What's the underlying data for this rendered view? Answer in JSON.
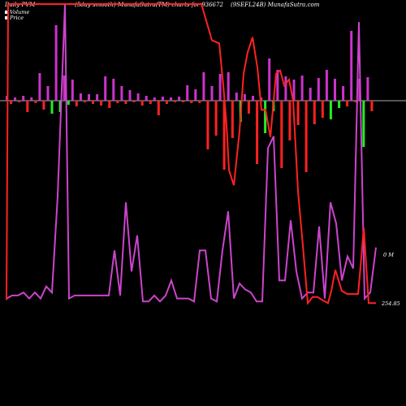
{
  "header": {
    "left": "Daily PVM",
    "center": "(5day smooth) MunafaSutra(TM) charts for 936672",
    "right": "(9SEFL24B) MunafaSutra.com"
  },
  "legend": [
    {
      "label": "Volume",
      "color": "#ffffff"
    },
    {
      "label": "Price",
      "color": "#ffffff"
    }
  ],
  "labels": {
    "volume_right": "0 M",
    "price_last": "254.85"
  },
  "colors": {
    "background": "#000000",
    "volume_line": "#cc44cc",
    "price_line": "#ff2222",
    "bar_up": "#cc33cc",
    "bar_down": "#ff2222",
    "bar_green": "#22ee22",
    "baseline": "#aaaaaa"
  },
  "chart_data": {
    "type": "bar",
    "description_series": [
      "PVM bars",
      "Volume line",
      "Price line"
    ],
    "baseline": 0,
    "pvm_bars": [
      {
        "v": 6,
        "c": "up"
      },
      {
        "v": -4,
        "c": "down"
      },
      {
        "v": 4,
        "c": "up"
      },
      {
        "v": -2,
        "c": "down"
      },
      {
        "v": 6,
        "c": "up"
      },
      {
        "v": -14,
        "c": "down"
      },
      {
        "v": 4,
        "c": "up"
      },
      {
        "v": -3,
        "c": "down"
      },
      {
        "v": 34,
        "c": "up"
      },
      {
        "v": -11,
        "c": "down"
      },
      {
        "v": 18,
        "c": "up"
      },
      {
        "v": -16,
        "c": "green"
      },
      {
        "v": 93,
        "c": "up"
      },
      {
        "v": -14,
        "c": "green"
      },
      {
        "v": 31,
        "c": "up"
      },
      {
        "v": -5,
        "c": "green"
      },
      {
        "v": 26,
        "c": "up"
      },
      {
        "v": -7,
        "c": "down"
      },
      {
        "v": 9,
        "c": "up"
      },
      {
        "v": -2,
        "c": "down"
      },
      {
        "v": 8,
        "c": "up"
      },
      {
        "v": -4,
        "c": "down"
      },
      {
        "v": 8,
        "c": "up"
      },
      {
        "v": -6,
        "c": "down"
      },
      {
        "v": 30,
        "c": "up"
      },
      {
        "v": -9,
        "c": "down"
      },
      {
        "v": 27,
        "c": "up"
      },
      {
        "v": -3,
        "c": "down"
      },
      {
        "v": 18,
        "c": "up"
      },
      {
        "v": -4,
        "c": "down"
      },
      {
        "v": 13,
        "c": "up"
      },
      {
        "v": -2,
        "c": "down"
      },
      {
        "v": 9,
        "c": "up"
      },
      {
        "v": -6,
        "c": "down"
      },
      {
        "v": 6,
        "c": "up"
      },
      {
        "v": -4,
        "c": "down"
      },
      {
        "v": 4,
        "c": "up"
      },
      {
        "v": -18,
        "c": "down"
      },
      {
        "v": 5,
        "c": "up"
      },
      {
        "v": -4,
        "c": "down"
      },
      {
        "v": 4,
        "c": "up"
      },
      {
        "v": -2,
        "c": "down"
      },
      {
        "v": 5,
        "c": "up"
      },
      {
        "v": -2,
        "c": "down"
      },
      {
        "v": 19,
        "c": "up"
      },
      {
        "v": -3,
        "c": "down"
      },
      {
        "v": 14,
        "c": "up"
      },
      {
        "v": -3,
        "c": "down"
      },
      {
        "v": 35,
        "c": "up"
      },
      {
        "v": -60,
        "c": "down"
      },
      {
        "v": 18,
        "c": "up"
      },
      {
        "v": -43,
        "c": "down"
      },
      {
        "v": 33,
        "c": "up"
      },
      {
        "v": -85,
        "c": "down"
      },
      {
        "v": 35,
        "c": "up"
      },
      {
        "v": -46,
        "c": "down"
      },
      {
        "v": 10,
        "c": "up"
      },
      {
        "v": -26,
        "c": "green"
      },
      {
        "v": 8,
        "c": "up"
      },
      {
        "v": -16,
        "c": "down"
      },
      {
        "v": 6,
        "c": "up"
      },
      {
        "v": -78,
        "c": "down"
      },
      {
        "v": 4,
        "c": "up"
      },
      {
        "v": -40,
        "c": "green"
      },
      {
        "v": 52,
        "c": "up"
      },
      {
        "v": -13,
        "c": "green"
      },
      {
        "v": 38,
        "c": "up"
      },
      {
        "v": -83,
        "c": "down"
      },
      {
        "v": 30,
        "c": "up"
      },
      {
        "v": -49,
        "c": "down"
      },
      {
        "v": 26,
        "c": "up"
      },
      {
        "v": -30,
        "c": "down"
      },
      {
        "v": 31,
        "c": "up"
      },
      {
        "v": -88,
        "c": "down"
      },
      {
        "v": 16,
        "c": "up"
      },
      {
        "v": -29,
        "c": "down"
      },
      {
        "v": 28,
        "c": "up"
      },
      {
        "v": -21,
        "c": "down"
      },
      {
        "v": 38,
        "c": "up"
      },
      {
        "v": -23,
        "c": "green"
      },
      {
        "v": 27,
        "c": "up"
      },
      {
        "v": -9,
        "c": "green"
      },
      {
        "v": 18,
        "c": "up"
      },
      {
        "v": -7,
        "c": "down"
      },
      {
        "v": 86,
        "c": "up"
      },
      {
        "v": -2,
        "c": "down"
      },
      {
        "v": 27,
        "c": "up"
      },
      {
        "v": -57,
        "c": "green"
      },
      {
        "v": 29,
        "c": "up"
      },
      {
        "v": -13,
        "c": "down"
      }
    ],
    "volume_line": [
      {
        "x": 0,
        "y": 2
      },
      {
        "x": 7,
        "y": 3
      },
      {
        "x": 14,
        "y": 3
      },
      {
        "x": 21,
        "y": 4
      },
      {
        "x": 28,
        "y": 2
      },
      {
        "x": 35,
        "y": 4
      },
      {
        "x": 42,
        "y": 2
      },
      {
        "x": 49,
        "y": 6
      },
      {
        "x": 56,
        "y": 4
      },
      {
        "x": 63,
        "y": 36
      },
      {
        "x": 72,
        "y": 100
      },
      {
        "x": 77,
        "y": 2
      },
      {
        "x": 84,
        "y": 3
      },
      {
        "x": 91,
        "y": 3
      },
      {
        "x": 98,
        "y": 3
      },
      {
        "x": 105,
        "y": 3
      },
      {
        "x": 112,
        "y": 3
      },
      {
        "x": 119,
        "y": 3
      },
      {
        "x": 126,
        "y": 3
      },
      {
        "x": 133,
        "y": 18
      },
      {
        "x": 140,
        "y": 3
      },
      {
        "x": 147,
        "y": 34
      },
      {
        "x": 154,
        "y": 11
      },
      {
        "x": 161,
        "y": 23
      },
      {
        "x": 168,
        "y": 1
      },
      {
        "x": 175,
        "y": 1
      },
      {
        "x": 182,
        "y": 3
      },
      {
        "x": 189,
        "y": 1
      },
      {
        "x": 196,
        "y": 3
      },
      {
        "x": 203,
        "y": 8
      },
      {
        "x": 210,
        "y": 2
      },
      {
        "x": 217,
        "y": 2
      },
      {
        "x": 224,
        "y": 2
      },
      {
        "x": 231,
        "y": 1
      },
      {
        "x": 238,
        "y": 18
      },
      {
        "x": 245,
        "y": 18
      },
      {
        "x": 252,
        "y": 2
      },
      {
        "x": 259,
        "y": 1
      },
      {
        "x": 266,
        "y": 18
      },
      {
        "x": 273,
        "y": 31
      },
      {
        "x": 280,
        "y": 2
      },
      {
        "x": 287,
        "y": 7
      },
      {
        "x": 294,
        "y": 5
      },
      {
        "x": 301,
        "y": 4
      },
      {
        "x": 308,
        "y": 1
      },
      {
        "x": 315,
        "y": 1
      },
      {
        "x": 322,
        "y": 52
      },
      {
        "x": 329,
        "y": 56
      },
      {
        "x": 336,
        "y": 8
      },
      {
        "x": 343,
        "y": 8
      },
      {
        "x": 350,
        "y": 28
      },
      {
        "x": 357,
        "y": 11
      },
      {
        "x": 364,
        "y": 2
      },
      {
        "x": 371,
        "y": 4
      },
      {
        "x": 378,
        "y": 4
      },
      {
        "x": 385,
        "y": 26
      },
      {
        "x": 392,
        "y": 2
      },
      {
        "x": 399,
        "y": 34
      },
      {
        "x": 406,
        "y": 27
      },
      {
        "x": 413,
        "y": 8
      },
      {
        "x": 420,
        "y": 16
      },
      {
        "x": 427,
        "y": 12
      },
      {
        "x": 434,
        "y": 94
      },
      {
        "x": 441,
        "y": 2
      },
      {
        "x": 448,
        "y": 4
      },
      {
        "x": 455,
        "y": 19
      }
    ],
    "price_line": [
      {
        "x": 0,
        "y": 2
      },
      {
        "x": 2,
        "y": 100
      },
      {
        "x": 20,
        "y": 100
      },
      {
        "x": 240,
        "y": 100
      },
      {
        "x": 253,
        "y": 88
      },
      {
        "x": 262,
        "y": 87
      },
      {
        "x": 267,
        "y": 73
      },
      {
        "x": 271,
        "y": 60
      },
      {
        "x": 274,
        "y": 45
      },
      {
        "x": 280,
        "y": 40
      },
      {
        "x": 287,
        "y": 58
      },
      {
        "x": 292,
        "y": 77
      },
      {
        "x": 297,
        "y": 84
      },
      {
        "x": 303,
        "y": 89
      },
      {
        "x": 309,
        "y": 79
      },
      {
        "x": 314,
        "y": 65
      },
      {
        "x": 319,
        "y": 65
      },
      {
        "x": 325,
        "y": 56
      },
      {
        "x": 332,
        "y": 77
      },
      {
        "x": 337,
        "y": 78
      },
      {
        "x": 342,
        "y": 73
      },
      {
        "x": 348,
        "y": 75
      },
      {
        "x": 353,
        "y": 68
      },
      {
        "x": 359,
        "y": 38
      },
      {
        "x": 365,
        "y": 20
      },
      {
        "x": 371,
        "y": 1
      },
      {
        "x": 377,
        "y": 3
      },
      {
        "x": 383,
        "y": 3
      },
      {
        "x": 389,
        "y": 2
      },
      {
        "x": 396,
        "y": 1
      },
      {
        "x": 400,
        "y": 5
      },
      {
        "x": 405,
        "y": 12
      },
      {
        "x": 413,
        "y": 5
      },
      {
        "x": 420,
        "y": 4
      },
      {
        "x": 427,
        "y": 4
      },
      {
        "x": 433,
        "y": 4
      },
      {
        "x": 436,
        "y": 13
      },
      {
        "x": 440,
        "y": 26
      },
      {
        "x": 446,
        "y": 1
      },
      {
        "x": 455,
        "y": 1
      }
    ]
  }
}
